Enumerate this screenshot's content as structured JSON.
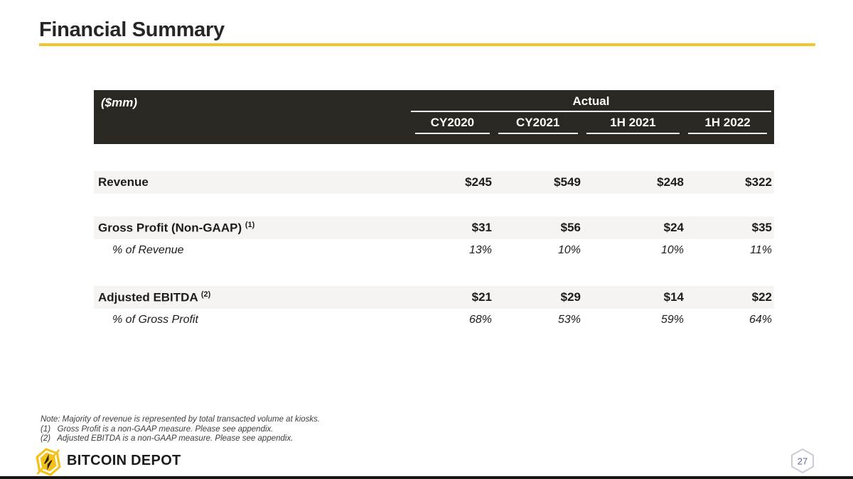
{
  "slide": {
    "title": "Financial Summary"
  },
  "colors": {
    "accent": "#F0C42A",
    "header_bg": "#2B2723",
    "row_bg": "#F5F4F1",
    "footer_bar": "#181614"
  },
  "table": {
    "unit_label": "($mm)",
    "group_header": "Actual",
    "columns": [
      "CY2020",
      "CY2021",
      "1H 2021",
      "1H 2022"
    ],
    "sections": [
      {
        "rows": [
          {
            "label": "Revenue",
            "superscript": "",
            "style": "primary",
            "values": [
              "$245",
              "$549",
              "$248",
              "$322"
            ]
          }
        ]
      },
      {
        "rows": [
          {
            "label": "Gross Profit (Non-GAAP)",
            "superscript": "(1)",
            "style": "primary",
            "values": [
              "$31",
              "$56",
              "$24",
              "$35"
            ]
          },
          {
            "label": "% of Revenue",
            "superscript": "",
            "style": "percent",
            "values": [
              "13%",
              "10%",
              "10%",
              "11%"
            ]
          }
        ]
      },
      {
        "rows": [
          {
            "label": "Adjusted EBITDA",
            "superscript": "(2)",
            "style": "primary",
            "values": [
              "$21",
              "$29",
              "$14",
              "$22"
            ]
          },
          {
            "label": "% of Gross Profit",
            "superscript": "",
            "style": "percent",
            "values": [
              "68%",
              "53%",
              "59%",
              "64%"
            ]
          }
        ]
      }
    ]
  },
  "notes": [
    "Note: Majority of revenue is represented by total transacted volume at kiosks.",
    "(1)   Gross Profit is a non-GAAP measure. Please see appendix.",
    "(2)   Adjusted EBITDA is a non-GAAP measure. Please see appendix."
  ],
  "footer": {
    "brand": "BITCOIN DEPOT",
    "page_number": "27"
  }
}
